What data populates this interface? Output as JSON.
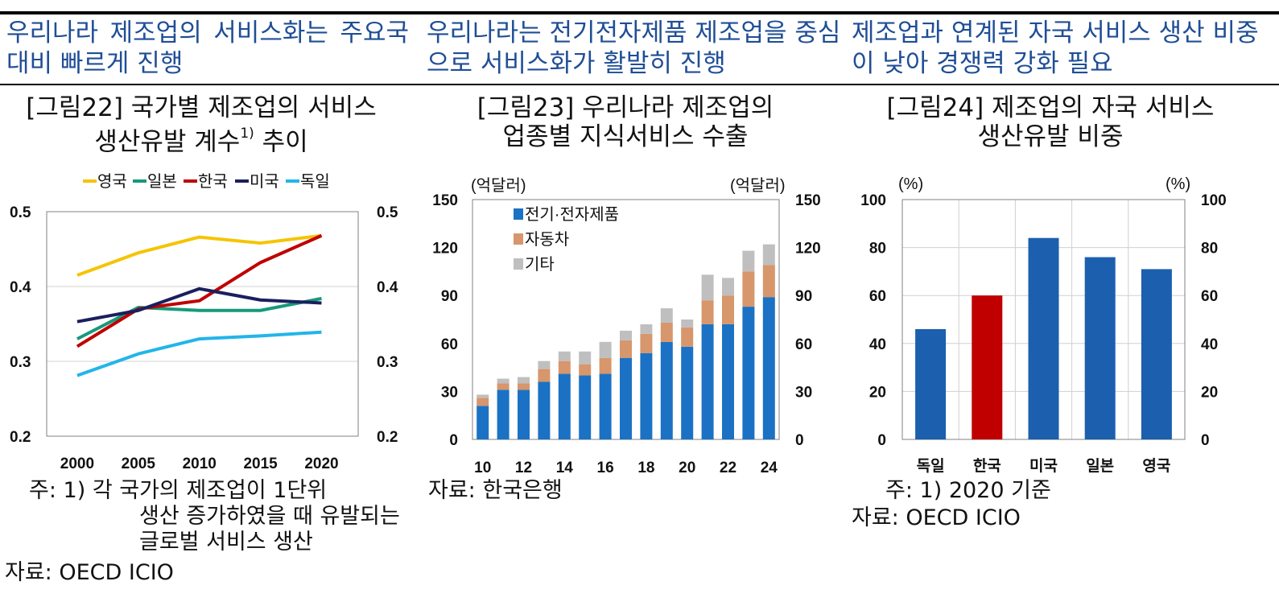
{
  "headlines": [
    "우리나라 제조업의 서비스화는 주요국대비 빠르게 진행",
    "우리나라는 전기전자제품 제조업을 중심으로 서비스화가 활발히 진행",
    "제조업과 연계된 자국 서비스 생산 비중이 낮아 경쟁력 강화 필요"
  ],
  "figures": [
    {
      "title_line1": "[그림22] 국가별 제조업의 서비스",
      "title_line2": "생산유발 계수",
      "title_sup": "1)",
      "title_tail": " 추이"
    },
    {
      "title_line1": "[그림23] 우리나라 제조업의",
      "title_line2": "업종별 지식서비스 수출"
    },
    {
      "title_line1": "[그림24] 제조업의 자국 서비스",
      "title_line2": "생산유발 비중"
    }
  ],
  "notes": {
    "fig22_note_prefix": "주: 1) 각 국가의 제조업이 1단위",
    "fig22_note_line2": "생산 증가하였을 때 유발되는",
    "fig22_note_line3": "글로벌 서비스 생산",
    "fig22_source": "자료: OECD ICIO",
    "fig23_source": "자료: 한국은행",
    "fig24_note": "주: 1) 2020 기준",
    "fig24_source": "자료: OECD ICIO"
  },
  "chart_data": [
    {
      "type": "line",
      "title": "[그림22] 국가별 제조업의 서비스 생산유발 계수 추이",
      "x": [
        2000,
        2005,
        2010,
        2015,
        2020
      ],
      "xticks": [
        "2000",
        "2005",
        "2010",
        "2015",
        "2020"
      ],
      "ylim": [
        0.2,
        0.5
      ],
      "yticks": [
        "0.2",
        "0.3",
        "0.4",
        "0.5"
      ],
      "grid": true,
      "legend_position": "top",
      "series": [
        {
          "name": "영국",
          "color": "#f5c400",
          "values": [
            0.415,
            0.445,
            0.466,
            0.458,
            0.468
          ]
        },
        {
          "name": "일본",
          "color": "#16997a",
          "values": [
            0.33,
            0.372,
            0.368,
            0.368,
            0.384
          ]
        },
        {
          "name": "한국",
          "color": "#c00000",
          "values": [
            0.32,
            0.37,
            0.381,
            0.432,
            0.468
          ]
        },
        {
          "name": "미국",
          "color": "#1b1f5e",
          "values": [
            0.353,
            0.368,
            0.397,
            0.382,
            0.378
          ]
        },
        {
          "name": "독일",
          "color": "#22b5ea",
          "values": [
            0.281,
            0.31,
            0.33,
            0.334,
            0.339
          ]
        }
      ]
    },
    {
      "type": "bar",
      "stacked": true,
      "title": "[그림23] 우리나라 제조업의 업종별 지식서비스 수출",
      "unit_left": "(억달러)",
      "unit_right": "(억달러)",
      "categories": [
        10,
        11,
        12,
        13,
        14,
        15,
        16,
        17,
        18,
        19,
        20,
        21,
        22,
        23,
        24
      ],
      "xticks": [
        "10",
        "12",
        "14",
        "16",
        "18",
        "20",
        "22",
        "24"
      ],
      "ylim": [
        0,
        150
      ],
      "yticks": [
        "0",
        "30",
        "60",
        "90",
        "120",
        "150"
      ],
      "legend_position": "top-left",
      "series": [
        {
          "name": "전기·전자제품",
          "color": "#1b72c4",
          "values": [
            21,
            31,
            31,
            36,
            41,
            40,
            41,
            51,
            54,
            61,
            58,
            72,
            72,
            83,
            89
          ]
        },
        {
          "name": "자동차",
          "color": "#d7966b",
          "values": [
            5,
            4,
            4,
            8,
            8,
            7,
            10,
            11,
            12,
            12,
            12,
            15,
            18,
            22,
            20
          ]
        },
        {
          "name": "기타",
          "color": "#bfbfbf",
          "values": [
            2,
            3,
            4,
            5,
            6,
            8,
            10,
            6,
            6,
            9,
            5,
            16,
            11,
            13,
            13
          ]
        }
      ]
    },
    {
      "type": "bar",
      "title": "[그림24] 제조업의 자국 서비스 생산유발 비중",
      "unit_left": "(%)",
      "unit_right": "(%)",
      "categories": [
        "독일",
        "한국",
        "미국",
        "일본",
        "영국"
      ],
      "values": [
        46,
        60,
        84,
        76,
        71
      ],
      "colors": [
        "#1c5fae",
        "#c00000",
        "#1c5fae",
        "#1c5fae",
        "#1c5fae"
      ],
      "ylim": [
        0,
        100
      ],
      "yticks": [
        "0",
        "20",
        "40",
        "60",
        "80",
        "100"
      ],
      "grid": true
    }
  ]
}
